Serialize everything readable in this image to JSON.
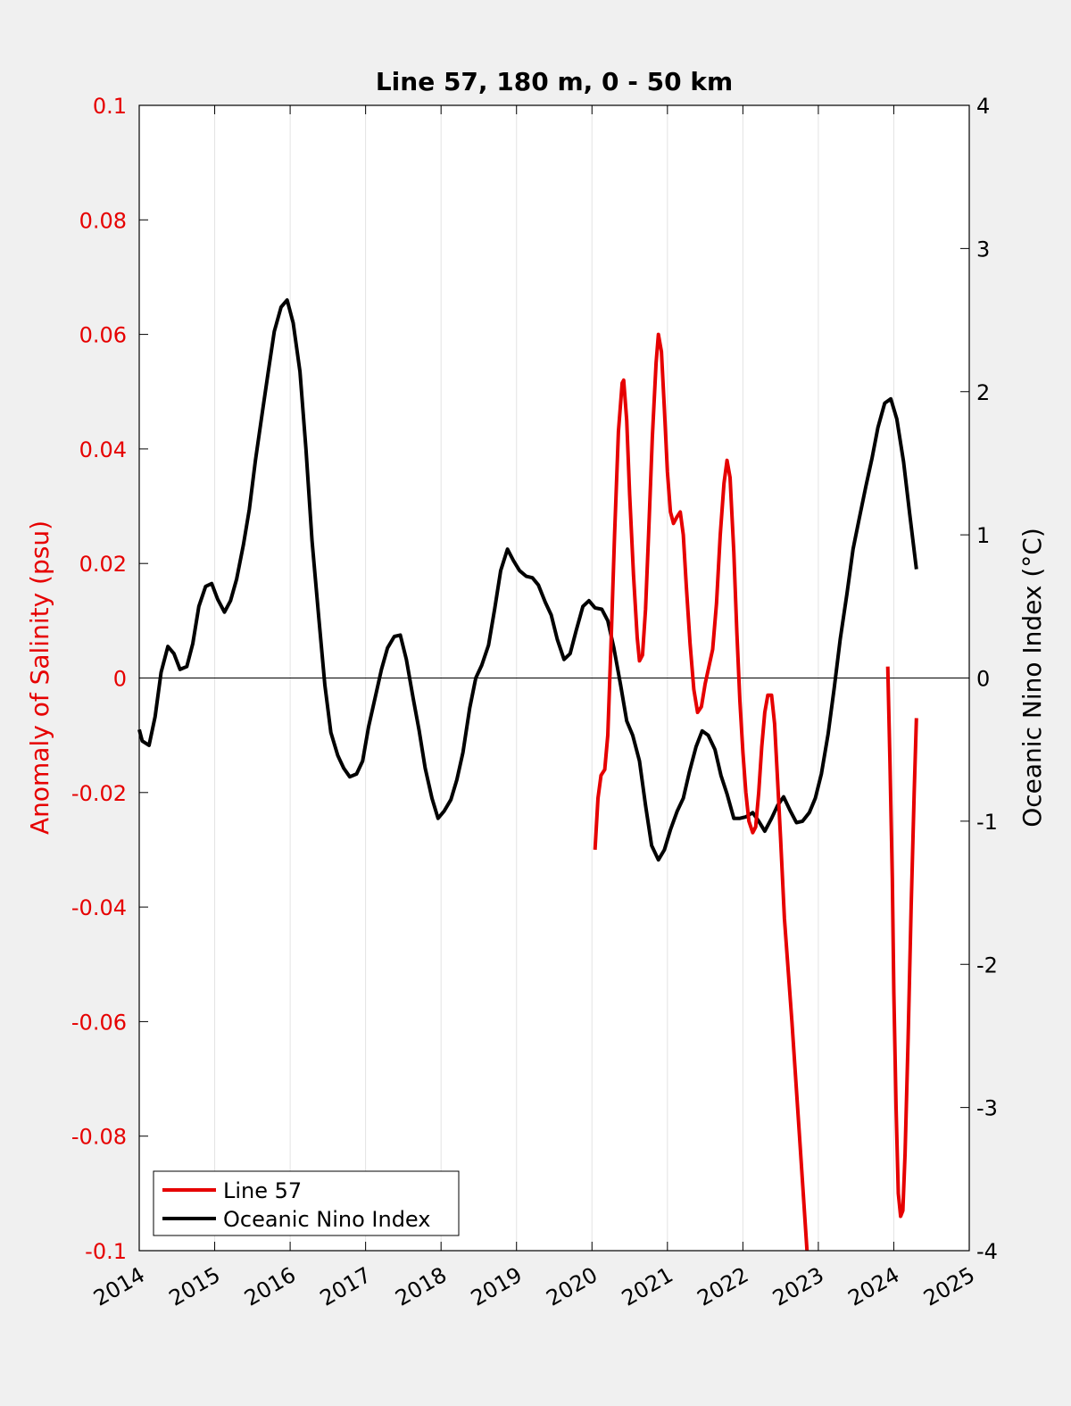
{
  "chart_data": {
    "type": "line",
    "title": "Line 57, 180 m, 0 - 50 km",
    "xlabel": "",
    "xlim": [
      2014,
      2025
    ],
    "x_ticks": [
      "2014",
      "2015",
      "2016",
      "2017",
      "2018",
      "2019",
      "2020",
      "2021",
      "2022",
      "2023",
      "2024",
      "2025"
    ],
    "y_left": {
      "label": "Anomaly of Salinity (psu)",
      "lim": [
        -0.1,
        0.1
      ],
      "ticks": [
        "0.1",
        "0.08",
        "0.06",
        "0.04",
        "0.02",
        "0",
        "-0.02",
        "-0.04",
        "-0.06",
        "-0.08",
        "-0.1"
      ],
      "color": "#e60000"
    },
    "y_right": {
      "label": "Oceanic Nino Index (°C)",
      "lim": [
        -4,
        4
      ],
      "ticks": [
        "4",
        "3",
        "2",
        "1",
        "0",
        "-1",
        "-2",
        "-3",
        "-4"
      ],
      "color": "#000000"
    },
    "grid": "vertical",
    "zero_line": true,
    "legend_position": "bottom-left",
    "series": [
      {
        "name": "Line 57",
        "axis": "left",
        "color": "#e60000",
        "segments": [
          [
            [
              2020.04,
              -0.03
            ],
            [
              2020.08,
              -0.021
            ],
            [
              2020.12,
              -0.017
            ],
            [
              2020.17,
              -0.016
            ],
            [
              2020.21,
              -0.01
            ],
            [
              2020.25,
              0.005
            ],
            [
              2020.3,
              0.025
            ],
            [
              2020.35,
              0.043
            ],
            [
              2020.4,
              0.0515
            ],
            [
              2020.42,
              0.052
            ],
            [
              2020.46,
              0.045
            ],
            [
              2020.5,
              0.032
            ],
            [
              2020.55,
              0.018
            ],
            [
              2020.6,
              0.007
            ],
            [
              2020.63,
              0.003
            ],
            [
              2020.67,
              0.004
            ],
            [
              2020.71,
              0.012
            ],
            [
              2020.75,
              0.025
            ],
            [
              2020.8,
              0.042
            ],
            [
              2020.85,
              0.055
            ],
            [
              2020.88,
              0.06
            ],
            [
              2020.92,
              0.057
            ],
            [
              2020.96,
              0.047
            ],
            [
              2021.0,
              0.036
            ],
            [
              2021.04,
              0.029
            ],
            [
              2021.08,
              0.027
            ],
            [
              2021.12,
              0.028
            ],
            [
              2021.17,
              0.029
            ],
            [
              2021.21,
              0.025
            ],
            [
              2021.25,
              0.016
            ],
            [
              2021.3,
              0.006
            ],
            [
              2021.35,
              -0.002
            ],
            [
              2021.4,
              -0.006
            ],
            [
              2021.45,
              -0.005
            ],
            [
              2021.5,
              -0.001
            ],
            [
              2021.55,
              0.002
            ],
            [
              2021.6,
              0.005
            ],
            [
              2021.65,
              0.013
            ],
            [
              2021.7,
              0.025
            ],
            [
              2021.75,
              0.034
            ],
            [
              2021.79,
              0.038
            ],
            [
              2021.83,
              0.035
            ],
            [
              2021.88,
              0.022
            ],
            [
              2021.92,
              0.008
            ],
            [
              2021.96,
              -0.004
            ],
            [
              2022.0,
              -0.013
            ],
            [
              2022.04,
              -0.02
            ],
            [
              2022.08,
              -0.025
            ],
            [
              2022.13,
              -0.027
            ],
            [
              2022.17,
              -0.026
            ],
            [
              2022.21,
              -0.02
            ],
            [
              2022.25,
              -0.012
            ],
            [
              2022.29,
              -0.006
            ],
            [
              2022.33,
              -0.003
            ],
            [
              2022.38,
              -0.003
            ],
            [
              2022.42,
              -0.008
            ],
            [
              2022.46,
              -0.018
            ],
            [
              2022.5,
              -0.028
            ],
            [
              2022.55,
              -0.042
            ],
            [
              2022.65,
              -0.06
            ],
            [
              2022.75,
              -0.08
            ],
            [
              2022.85,
              -0.1
            ]
          ],
          [
            [
              2023.92,
              0.002
            ],
            [
              2023.95,
              -0.015
            ],
            [
              2023.98,
              -0.035
            ],
            [
              2024.0,
              -0.055
            ],
            [
              2024.03,
              -0.075
            ],
            [
              2024.06,
              -0.09
            ],
            [
              2024.09,
              -0.094
            ],
            [
              2024.12,
              -0.093
            ],
            [
              2024.15,
              -0.083
            ],
            [
              2024.19,
              -0.063
            ],
            [
              2024.23,
              -0.04
            ],
            [
              2024.27,
              -0.02
            ],
            [
              2024.3,
              -0.007
            ]
          ]
        ]
      },
      {
        "name": "Oceanic Nino Index",
        "axis": "right",
        "color": "#000000",
        "segments": [
          [
            [
              2014.0,
              -0.36
            ],
            [
              2014.04,
              -0.44
            ],
            [
              2014.13,
              -0.47
            ],
            [
              2014.21,
              -0.27
            ],
            [
              2014.29,
              0.04
            ],
            [
              2014.38,
              0.22
            ],
            [
              2014.46,
              0.17
            ],
            [
              2014.54,
              0.06
            ],
            [
              2014.63,
              0.08
            ],
            [
              2014.71,
              0.24
            ],
            [
              2014.79,
              0.5
            ],
            [
              2014.88,
              0.64
            ],
            [
              2014.96,
              0.66
            ],
            [
              2015.04,
              0.55
            ],
            [
              2015.13,
              0.46
            ],
            [
              2015.21,
              0.54
            ],
            [
              2015.29,
              0.69
            ],
            [
              2015.38,
              0.93
            ],
            [
              2015.46,
              1.18
            ],
            [
              2015.54,
              1.52
            ],
            [
              2015.63,
              1.85
            ],
            [
              2015.71,
              2.14
            ],
            [
              2015.79,
              2.42
            ],
            [
              2015.88,
              2.59
            ],
            [
              2015.96,
              2.64
            ],
            [
              2016.04,
              2.48
            ],
            [
              2016.13,
              2.14
            ],
            [
              2016.21,
              1.6
            ],
            [
              2016.29,
              0.96
            ],
            [
              2016.38,
              0.42
            ],
            [
              2016.46,
              -0.05
            ],
            [
              2016.54,
              -0.38
            ],
            [
              2016.63,
              -0.54
            ],
            [
              2016.71,
              -0.63
            ],
            [
              2016.79,
              -0.69
            ],
            [
              2016.88,
              -0.67
            ],
            [
              2016.96,
              -0.58
            ],
            [
              2017.04,
              -0.34
            ],
            [
              2017.13,
              -0.13
            ],
            [
              2017.21,
              0.06
            ],
            [
              2017.29,
              0.21
            ],
            [
              2017.38,
              0.29
            ],
            [
              2017.46,
              0.3
            ],
            [
              2017.54,
              0.13
            ],
            [
              2017.63,
              -0.14
            ],
            [
              2017.71,
              -0.37
            ],
            [
              2017.79,
              -0.63
            ],
            [
              2017.88,
              -0.84
            ],
            [
              2017.96,
              -0.98
            ],
            [
              2018.04,
              -0.93
            ],
            [
              2018.13,
              -0.85
            ],
            [
              2018.21,
              -0.71
            ],
            [
              2018.29,
              -0.52
            ],
            [
              2018.38,
              -0.21
            ],
            [
              2018.46,
              0.0
            ],
            [
              2018.54,
              0.09
            ],
            [
              2018.63,
              0.23
            ],
            [
              2018.71,
              0.48
            ],
            [
              2018.79,
              0.75
            ],
            [
              2018.88,
              0.9
            ],
            [
              2018.96,
              0.82
            ],
            [
              2019.04,
              0.75
            ],
            [
              2019.13,
              0.71
            ],
            [
              2019.21,
              0.7
            ],
            [
              2019.29,
              0.65
            ],
            [
              2019.38,
              0.53
            ],
            [
              2019.46,
              0.44
            ],
            [
              2019.54,
              0.27
            ],
            [
              2019.63,
              0.13
            ],
            [
              2019.71,
              0.17
            ],
            [
              2019.79,
              0.33
            ],
            [
              2019.88,
              0.5
            ],
            [
              2019.96,
              0.54
            ],
            [
              2020.04,
              0.49
            ],
            [
              2020.13,
              0.48
            ],
            [
              2020.21,
              0.4
            ],
            [
              2020.29,
              0.21
            ],
            [
              2020.38,
              -0.05
            ],
            [
              2020.46,
              -0.3
            ],
            [
              2020.54,
              -0.4
            ],
            [
              2020.63,
              -0.58
            ],
            [
              2020.71,
              -0.89
            ],
            [
              2020.79,
              -1.17
            ],
            [
              2020.88,
              -1.27
            ],
            [
              2020.96,
              -1.2
            ],
            [
              2021.04,
              -1.06
            ],
            [
              2021.13,
              -0.93
            ],
            [
              2021.21,
              -0.84
            ],
            [
              2021.29,
              -0.66
            ],
            [
              2021.38,
              -0.48
            ],
            [
              2021.46,
              -0.37
            ],
            [
              2021.54,
              -0.4
            ],
            [
              2021.63,
              -0.5
            ],
            [
              2021.71,
              -0.68
            ],
            [
              2021.79,
              -0.81
            ],
            [
              2021.88,
              -0.98
            ],
            [
              2021.96,
              -0.98
            ],
            [
              2022.04,
              -0.97
            ],
            [
              2022.13,
              -0.94
            ],
            [
              2022.21,
              -1.0
            ],
            [
              2022.29,
              -1.07
            ],
            [
              2022.38,
              -0.98
            ],
            [
              2022.46,
              -0.89
            ],
            [
              2022.54,
              -0.83
            ],
            [
              2022.63,
              -0.93
            ],
            [
              2022.71,
              -1.01
            ],
            [
              2022.79,
              -1.0
            ],
            [
              2022.88,
              -0.94
            ],
            [
              2022.96,
              -0.84
            ],
            [
              2023.04,
              -0.67
            ],
            [
              2023.13,
              -0.39
            ],
            [
              2023.21,
              -0.07
            ],
            [
              2023.29,
              0.27
            ],
            [
              2023.38,
              0.59
            ],
            [
              2023.46,
              0.9
            ],
            [
              2023.54,
              1.11
            ],
            [
              2023.63,
              1.34
            ],
            [
              2023.71,
              1.53
            ],
            [
              2023.79,
              1.75
            ],
            [
              2023.88,
              1.92
            ],
            [
              2023.96,
              1.95
            ],
            [
              2024.04,
              1.81
            ],
            [
              2024.13,
              1.51
            ],
            [
              2024.21,
              1.15
            ],
            [
              2024.3,
              0.76
            ]
          ]
        ]
      }
    ]
  }
}
